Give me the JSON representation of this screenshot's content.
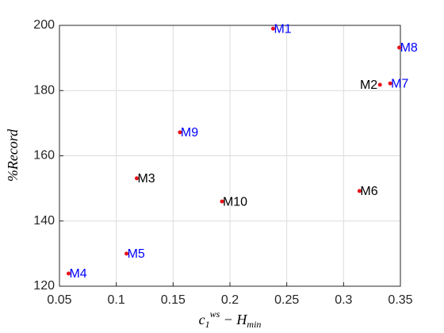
{
  "chart_data": {
    "type": "scatter",
    "xlabel": {
      "base": "c",
      "sub": "1",
      "sup": "ws",
      "rest": " − H",
      "rest_sub": "min"
    },
    "ylabel": "%Record",
    "series": [
      {
        "names": [
          "M1",
          "M2",
          "M3",
          "M4",
          "M5",
          "M6",
          "M7",
          "M8",
          "M9",
          "M10"
        ],
        "color": "#e8141b",
        "x": [
          0.238,
          0.332,
          0.118,
          0.058,
          0.109,
          0.314,
          0.341,
          0.349,
          0.156,
          0.193
        ],
        "values": [
          199.0,
          181.8,
          153.1,
          123.9,
          130.0,
          149.2,
          182.2,
          193.2,
          167.2,
          146.0
        ],
        "label_colors": [
          "#0000ff",
          "#000000",
          "#000000",
          "#0000ff",
          "#0000ff",
          "#000000",
          "#0000ff",
          "#0000ff",
          "#0000ff",
          "#000000"
        ],
        "label_positions": [
          "right",
          "left",
          "right",
          "right",
          "right",
          "right",
          "right",
          "right",
          "right",
          "right"
        ]
      }
    ],
    "xlim": [
      0.05,
      0.35
    ],
    "xticks": [
      0.05,
      0.1,
      0.15,
      0.2,
      0.25,
      0.3,
      0.35
    ],
    "ylim": [
      120,
      200
    ],
    "yticks": [
      120,
      140,
      160,
      180,
      200
    ],
    "grid": true
  }
}
